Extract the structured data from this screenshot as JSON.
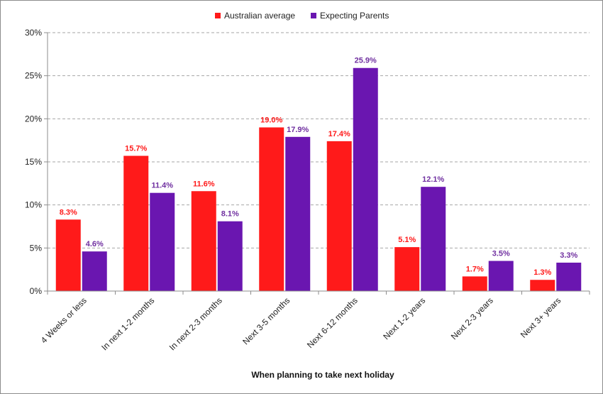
{
  "chart_data": {
    "type": "bar",
    "title": "",
    "xlabel": "When planning to take next holiday",
    "ylabel": "",
    "ylim": [
      0,
      30
    ],
    "yticks": [
      "0%",
      "5%",
      "10%",
      "15%",
      "20%",
      "25%",
      "30%"
    ],
    "grid": true,
    "legend_position": "top-center",
    "categories": [
      "4 Weeks or less",
      "In next 1-2 months",
      "In next 2-3 months",
      "Next 3-5 months",
      "Next 6-12 months",
      "Next 1-2 years",
      "Next 2-3 years",
      "Next 3+ years"
    ],
    "series": [
      {
        "name": "Australian average",
        "color": "#ff1a1a",
        "label_color": "#ff1a1a",
        "values": [
          8.3,
          15.7,
          11.6,
          19.0,
          17.4,
          5.1,
          1.7,
          1.3
        ],
        "labels": [
          "8.3%",
          "15.7%",
          "11.6%",
          "19.0%",
          "17.4%",
          "5.1%",
          "1.7%",
          "1.3%"
        ]
      },
      {
        "name": "Expecting Parents",
        "color": "#6a16b0",
        "label_color": "#7030a0",
        "values": [
          4.6,
          11.4,
          8.1,
          17.9,
          25.9,
          12.1,
          3.5,
          3.3
        ],
        "labels": [
          "4.6%",
          "11.4%",
          "8.1%",
          "17.9%",
          "25.9%",
          "12.1%",
          "3.5%",
          "3.3%"
        ]
      }
    ]
  }
}
